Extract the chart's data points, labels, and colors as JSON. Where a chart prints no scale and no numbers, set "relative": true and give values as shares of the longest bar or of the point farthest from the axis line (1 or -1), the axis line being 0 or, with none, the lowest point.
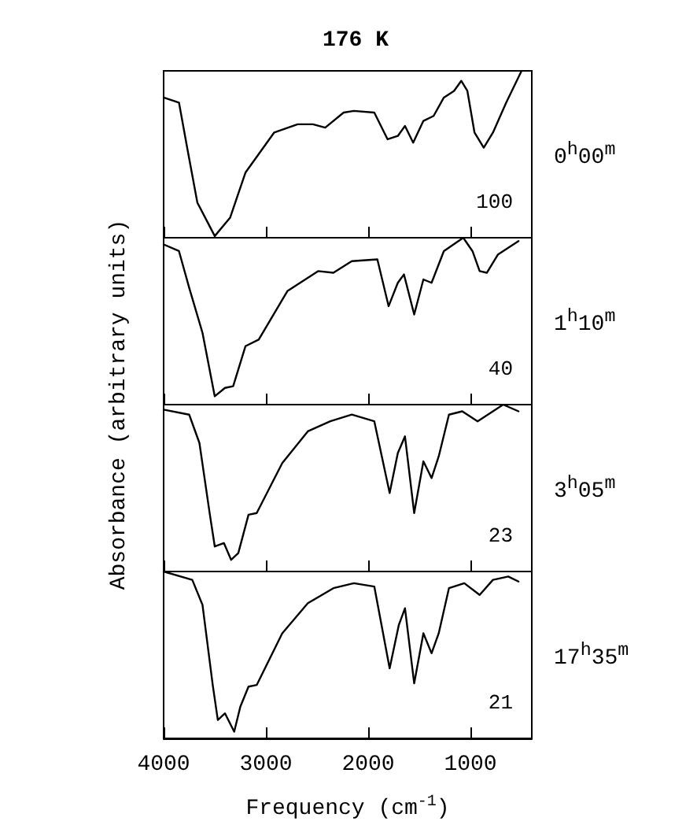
{
  "chart_data": [
    {
      "type": "line",
      "title": "176 K",
      "ylabel": "Absorbance (arbitrary units)",
      "annotations": [
        "100",
        "0$^{h}$00$^{m}$"
      ],
      "relative": true,
      "color": "#000000",
      "marker": "none",
      "xlim": [
        4000,
        400
      ],
      "xticks": [
        4000,
        3000,
        2000,
        1000
      ],
      "tick_labels": false,
      "x": [
        4000,
        3850,
        3770,
        3670,
        3500,
        3350,
        3200,
        2920,
        2690,
        2540,
        2420,
        2240,
        2140,
        1940,
        1810,
        1710,
        1640,
        1560,
        1460,
        1360,
        1260,
        1160,
        1090,
        1030,
        960,
        870,
        780,
        650,
        500
      ],
      "values": [
        0.84,
        0.81,
        0.54,
        0.21,
        0.01,
        0.12,
        0.39,
        0.63,
        0.68,
        0.68,
        0.66,
        0.75,
        0.76,
        0.75,
        0.59,
        0.61,
        0.67,
        0.57,
        0.7,
        0.73,
        0.84,
        0.88,
        0.94,
        0.88,
        0.63,
        0.54,
        0.63,
        0.81,
        1
      ]
    },
    {
      "type": "line",
      "annotations": [
        "40",
        "1$^{h}$10$^{m}$"
      ],
      "relative": true,
      "color": "#000000",
      "marker": "none",
      "xlim": [
        4000,
        400
      ],
      "xticks": [
        4000,
        3000,
        2000,
        1000
      ],
      "tick_labels": false,
      "x": [
        4000,
        3850,
        3750,
        3620,
        3500,
        3400,
        3320,
        3200,
        3070,
        2790,
        2490,
        2340,
        2160,
        1910,
        1800,
        1710,
        1650,
        1550,
        1460,
        1380,
        1260,
        1070,
        980,
        910,
        840,
        730,
        530
      ],
      "values": [
        0.96,
        0.92,
        0.7,
        0.43,
        0.05,
        0.1,
        0.11,
        0.35,
        0.39,
        0.68,
        0.8,
        0.79,
        0.86,
        0.87,
        0.59,
        0.73,
        0.78,
        0.54,
        0.75,
        0.73,
        0.92,
        1,
        0.92,
        0.8,
        0.79,
        0.9,
        0.98
      ]
    },
    {
      "type": "line",
      "annotations": [
        "23",
        "3$^{h}$05$^{m}$"
      ],
      "relative": true,
      "color": "#000000",
      "marker": "none",
      "xlim": [
        4000,
        400
      ],
      "xticks": [
        4000,
        3000,
        2000,
        1000
      ],
      "tick_labels": false,
      "x": [
        4000,
        3750,
        3650,
        3550,
        3500,
        3410,
        3340,
        3270,
        3170,
        3090,
        2840,
        2590,
        2370,
        2160,
        1940,
        1790,
        1710,
        1640,
        1550,
        1460,
        1380,
        1310,
        1210,
        1080,
        930,
        830,
        680,
        530
      ],
      "values": [
        0.97,
        0.94,
        0.77,
        0.35,
        0.15,
        0.17,
        0.07,
        0.11,
        0.34,
        0.35,
        0.65,
        0.84,
        0.9,
        0.94,
        0.9,
        0.47,
        0.71,
        0.81,
        0.35,
        0.66,
        0.56,
        0.69,
        0.94,
        0.96,
        0.9,
        0.94,
        1,
        0.96
      ]
    },
    {
      "type": "line",
      "xlabel": "Frequency (cm$^{-1}$)",
      "annotations": [
        "21",
        "17$^{h}$35$^{m}$"
      ],
      "relative": true,
      "color": "#000000",
      "marker": "none",
      "xlim": [
        4000,
        400
      ],
      "xticks": [
        4000,
        3000,
        2000,
        1000
      ],
      "tick_labels": "x",
      "x": [
        4000,
        3720,
        3620,
        3520,
        3470,
        3400,
        3310,
        3250,
        3170,
        3090,
        2840,
        2590,
        2340,
        2140,
        1940,
        1790,
        1700,
        1640,
        1550,
        1460,
        1380,
        1310,
        1210,
        1060,
        910,
        780,
        630,
        530
      ],
      "values": [
        1,
        0.95,
        0.8,
        0.32,
        0.11,
        0.15,
        0.04,
        0.19,
        0.31,
        0.32,
        0.63,
        0.81,
        0.9,
        0.93,
        0.91,
        0.42,
        0.68,
        0.78,
        0.33,
        0.63,
        0.51,
        0.63,
        0.9,
        0.93,
        0.86,
        0.95,
        0.97,
        0.94
      ]
    }
  ]
}
